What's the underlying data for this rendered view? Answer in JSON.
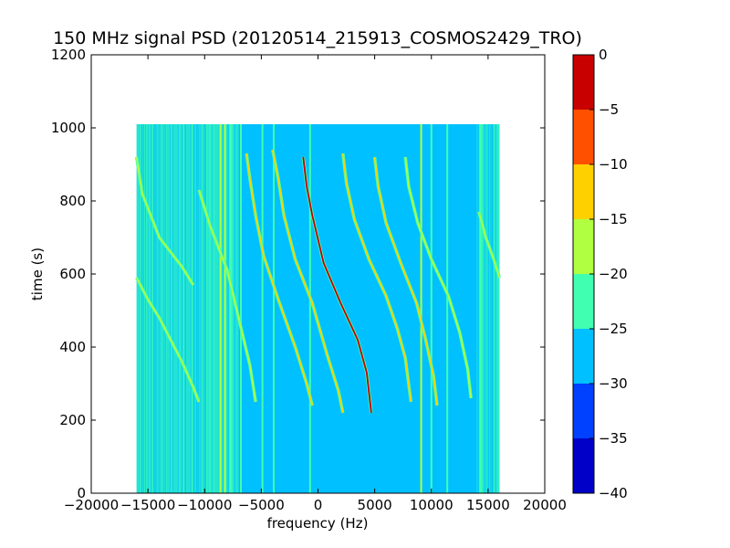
{
  "chart_data": {
    "type": "heatmap",
    "title": "150 MHz signal PSD (20120514_215913_COSMOS2429_TRO)",
    "xlabel": "frequency (Hz)",
    "ylabel": "time (s)",
    "xlim": [
      -20000,
      20000
    ],
    "ylim": [
      0,
      1200
    ],
    "xticks": [
      -20000,
      -15000,
      -10000,
      -5000,
      0,
      5000,
      10000,
      15000,
      20000
    ],
    "xtick_labels": [
      "−20000",
      "−15000",
      "−10000",
      "−5000",
      "0",
      "5000",
      "10000",
      "15000",
      "20000"
    ],
    "yticks": [
      0,
      200,
      400,
      600,
      800,
      1000,
      1200
    ],
    "ytick_labels": [
      "0",
      "200",
      "400",
      "600",
      "800",
      "1000",
      "1200"
    ],
    "data_extent": {
      "freq": [
        -16000,
        16000
      ],
      "time": [
        0,
        1010
      ]
    },
    "background_level": -27.5,
    "noisy_edge_level": -22.5,
    "colorbar": {
      "levels": [
        -40,
        -35,
        -30,
        -25,
        -20,
        -15,
        -10,
        -5,
        0
      ],
      "tick_labels": [
        "−40",
        "−35",
        "−30",
        "−25",
        "−20",
        "−15",
        "−10",
        "−5",
        "0"
      ],
      "colors": [
        "#0000c8",
        "#0040ff",
        "#00c0ff",
        "#40ffb0",
        "#b0ff40",
        "#ffd000",
        "#ff5000",
        "#c80000"
      ]
    },
    "vertical_lines": [
      {
        "freq": -8600,
        "level": -20
      },
      {
        "freq": -8200,
        "level": -17
      },
      {
        "freq": -7700,
        "level": -22
      },
      {
        "freq": -6800,
        "level": -22
      },
      {
        "freq": -4900,
        "level": -22
      },
      {
        "freq": -3900,
        "level": -22
      },
      {
        "freq": -700,
        "level": -22
      },
      {
        "freq": 9100,
        "level": -20
      },
      {
        "freq": 10000,
        "level": -22
      },
      {
        "freq": 11400,
        "level": -22
      },
      {
        "freq": 14300,
        "level": -22
      }
    ],
    "series": [
      {
        "points": [
          [
            -16000,
            590
          ],
          [
            -15000,
            530
          ],
          [
            -14000,
            480
          ],
          [
            -13000,
            420
          ],
          [
            -12000,
            360
          ],
          [
            -11000,
            290
          ],
          [
            -10500,
            250
          ]
        ],
        "level": -17.5
      },
      {
        "points": [
          [
            -16000,
            920
          ],
          [
            -15500,
            820
          ],
          [
            -14000,
            700
          ],
          [
            -12000,
            620
          ],
          [
            -11000,
            570
          ]
        ],
        "level": -17.5
      },
      {
        "points": [
          [
            -10500,
            830
          ],
          [
            -9500,
            730
          ],
          [
            -8000,
            610
          ],
          [
            -7000,
            480
          ],
          [
            -6000,
            350
          ],
          [
            -5500,
            250
          ]
        ],
        "level": -17.5
      },
      {
        "points": [
          [
            -6300,
            930
          ],
          [
            -6000,
            860
          ],
          [
            -5500,
            760
          ],
          [
            -4800,
            650
          ],
          [
            -3500,
            530
          ],
          [
            -2000,
            400
          ],
          [
            -1000,
            300
          ],
          [
            -500,
            240
          ]
        ],
        "level": -12.5
      },
      {
        "points": [
          [
            -4000,
            940
          ],
          [
            -3500,
            860
          ],
          [
            -3000,
            760
          ],
          [
            -2000,
            640
          ],
          [
            -500,
            520
          ],
          [
            800,
            380
          ],
          [
            1800,
            280
          ],
          [
            2200,
            220
          ]
        ],
        "level": -12.5
      },
      {
        "points": [
          [
            -1300,
            920
          ],
          [
            -1000,
            840
          ],
          [
            -500,
            760
          ],
          [
            500,
            630
          ],
          [
            2000,
            520
          ],
          [
            3500,
            420
          ],
          [
            4300,
            330
          ],
          [
            4700,
            220
          ]
        ],
        "level": -5
      },
      {
        "points": [
          [
            2200,
            930
          ],
          [
            2500,
            850
          ],
          [
            3200,
            750
          ],
          [
            4500,
            640
          ],
          [
            6000,
            540
          ],
          [
            7000,
            450
          ],
          [
            7700,
            370
          ],
          [
            8200,
            250
          ]
        ],
        "level": -12.5
      },
      {
        "points": [
          [
            5000,
            920
          ],
          [
            5300,
            840
          ],
          [
            6000,
            740
          ],
          [
            7300,
            630
          ],
          [
            8700,
            520
          ],
          [
            9500,
            420
          ],
          [
            10200,
            320
          ],
          [
            10500,
            240
          ]
        ],
        "level": -12.5
      },
      {
        "points": [
          [
            7700,
            920
          ],
          [
            8000,
            840
          ],
          [
            8800,
            740
          ],
          [
            10000,
            640
          ],
          [
            11500,
            540
          ],
          [
            12500,
            440
          ],
          [
            13200,
            340
          ],
          [
            13500,
            260
          ]
        ],
        "level": -17.5
      },
      {
        "points": [
          [
            14200,
            770
          ],
          [
            14800,
            700
          ],
          [
            15500,
            640
          ],
          [
            16000,
            590
          ]
        ],
        "level": -17.5
      }
    ]
  }
}
